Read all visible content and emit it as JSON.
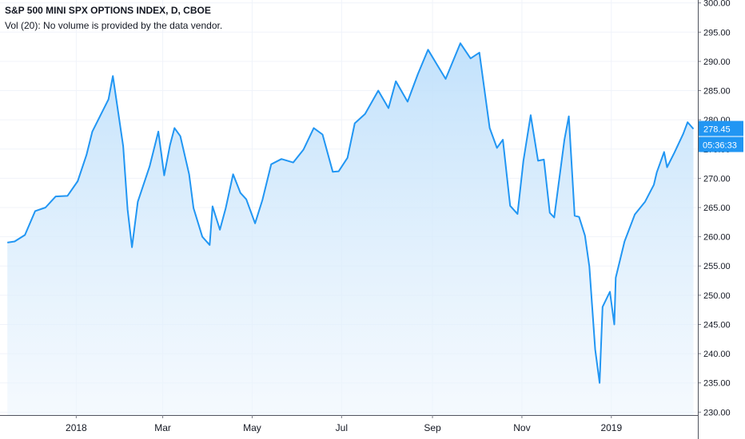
{
  "chart_data": {
    "type": "area",
    "title": "S&P 500 MINI SPX OPTIONS INDEX, D, CBOE",
    "subtitle": "Vol (20): No volume is provided by the data vendor.",
    "xlabel": "",
    "ylabel": "",
    "ylim": [
      229.5,
      300.5
    ],
    "y_ticks": [
      "300.00",
      "295.00",
      "290.00",
      "285.00",
      "280.00",
      "275.00",
      "270.00",
      "265.00",
      "260.00",
      "255.00",
      "250.00",
      "245.00",
      "240.00",
      "235.00",
      "230.00"
    ],
    "x_ticks": [
      "2018",
      "Mar",
      "May",
      "Jul",
      "Sep",
      "Nov",
      "2019"
    ],
    "last_value_label": "278.45",
    "countdown_label": "05:36:33",
    "grid": true,
    "colors": {
      "line": "#2196f3",
      "fill_top": "#bbdefb",
      "fill_bottom": "#eef6fd",
      "grid": "#f0f3fa",
      "axis_text": "#131722",
      "badge": "#2196f3"
    },
    "series": [
      {
        "x": [
          "2017-11-15",
          "2017-11-20",
          "2017-11-27",
          "2017-12-04",
          "2017-12-11",
          "2017-12-18",
          "2017-12-26",
          "2018-01-02",
          "2018-01-08",
          "2018-01-12",
          "2018-01-18",
          "2018-01-23",
          "2018-01-26",
          "2018-02-02",
          "2018-02-05",
          "2018-02-08",
          "2018-02-12",
          "2018-02-20",
          "2018-02-26",
          "2018-03-02",
          "2018-03-06",
          "2018-03-09",
          "2018-03-13",
          "2018-03-19",
          "2018-03-22",
          "2018-03-28",
          "2018-04-02",
          "2018-04-04",
          "2018-04-09",
          "2018-04-13",
          "2018-04-18",
          "2018-04-23",
          "2018-04-27",
          "2018-05-03",
          "2018-05-08",
          "2018-05-14",
          "2018-05-21",
          "2018-05-29",
          "2018-06-05",
          "2018-06-12",
          "2018-06-18",
          "2018-06-25",
          "2018-06-29",
          "2018-07-05",
          "2018-07-10",
          "2018-07-17",
          "2018-07-26",
          "2018-08-02",
          "2018-08-07",
          "2018-08-15",
          "2018-08-22",
          "2018-08-29",
          "2018-09-04",
          "2018-09-10",
          "2018-09-20",
          "2018-09-27",
          "2018-10-03",
          "2018-10-10",
          "2018-10-15",
          "2018-10-19",
          "2018-10-24",
          "2018-10-29",
          "2018-11-02",
          "2018-11-07",
          "2018-11-12",
          "2018-11-16",
          "2018-11-20",
          "2018-11-23",
          "2018-11-30",
          "2018-12-03",
          "2018-12-07",
          "2018-12-10",
          "2018-12-14",
          "2018-12-17",
          "2018-12-21",
          "2018-12-24",
          "2018-12-26",
          "2018-12-31",
          "2019-01-03",
          "2019-01-04",
          "2019-01-10",
          "2019-01-17",
          "2019-01-24",
          "2019-01-30",
          "2019-02-01",
          "2019-02-06",
          "2019-02-08",
          "2019-02-13",
          "2019-02-19",
          "2019-02-22",
          "2019-02-26"
        ],
        "y": [
          259.0,
          259.2,
          260.3,
          264.4,
          265.0,
          266.9,
          267.0,
          269.5,
          274.0,
          278.0,
          281.0,
          283.5,
          287.5,
          275.5,
          264.7,
          258.2,
          266.0,
          272.0,
          278.0,
          270.5,
          275.7,
          278.6,
          277.2,
          270.7,
          264.9,
          260.0,
          258.6,
          265.2,
          261.2,
          264.9,
          270.7,
          267.5,
          266.4,
          262.3,
          266.3,
          272.4,
          273.3,
          272.7,
          274.9,
          278.6,
          277.5,
          271.1,
          271.2,
          273.5,
          279.4,
          281.0,
          285.0,
          282.0,
          286.6,
          283.1,
          287.8,
          292.0,
          289.5,
          287.0,
          293.1,
          290.5,
          291.5,
          278.6,
          275.2,
          276.6,
          265.3,
          263.9,
          273.0,
          280.8,
          273.0,
          273.2,
          264.1,
          263.3,
          276.6,
          280.6,
          263.6,
          263.4,
          260.2,
          254.9,
          240.7,
          235.0,
          248.0,
          250.6,
          245.0,
          253.0,
          259.2,
          263.8,
          266.0,
          268.9,
          271.0,
          274.5,
          271.9,
          274.4,
          277.6,
          279.6,
          278.45
        ]
      }
    ]
  }
}
